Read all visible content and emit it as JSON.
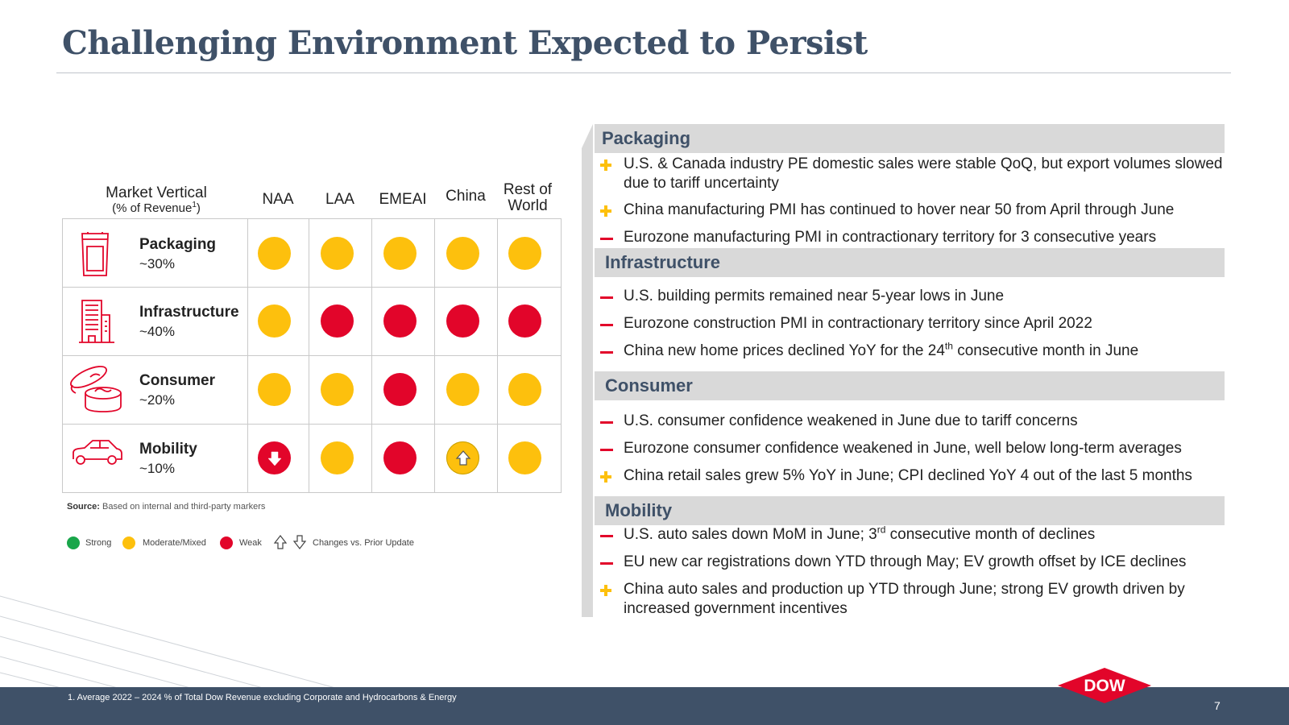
{
  "title": "Challenging Environment Expected to Persist",
  "table": {
    "header": {
      "market_vertical": "Market Vertical",
      "pct_label": "(% of Revenue",
      "pct_sup": "1",
      "pct_close": ")",
      "regions": [
        "NAA",
        "LAA",
        "EMEAI",
        "China",
        "Rest of World"
      ]
    },
    "rows": [
      {
        "name": "Packaging",
        "pct": "~30%",
        "cells": [
          "moderate",
          "moderate",
          "moderate",
          "moderate",
          "moderate"
        ],
        "changes": [
          null,
          null,
          null,
          null,
          null
        ]
      },
      {
        "name": "Infrastructure",
        "pct": "~40%",
        "cells": [
          "moderate",
          "weak",
          "weak",
          "weak",
          "weak"
        ],
        "changes": [
          null,
          null,
          null,
          null,
          null
        ]
      },
      {
        "name": "Consumer",
        "pct": "~20%",
        "cells": [
          "moderate",
          "moderate",
          "weak",
          "moderate",
          "moderate"
        ],
        "changes": [
          null,
          null,
          null,
          null,
          null
        ]
      },
      {
        "name": "Mobility",
        "pct": "~10%",
        "cells": [
          "weak",
          "moderate",
          "weak",
          "moderate",
          "moderate"
        ],
        "changes": [
          "down",
          null,
          null,
          "up",
          null
        ]
      }
    ]
  },
  "source": {
    "label": "Source:",
    "text": "Based on internal and third-party markers"
  },
  "legend": {
    "strong": "Strong",
    "moderate": "Moderate/Mixed",
    "weak": "Weak",
    "changes": "Changes vs. Prior Update"
  },
  "colors": {
    "strong": "#19a64a",
    "moderate": "#fdc00d",
    "weak": "#e2052a",
    "brand_navy": "#3f5168",
    "dow_red": "#e2052a"
  },
  "sections": [
    {
      "title": "Packaging",
      "bullets": [
        {
          "sign": "plus",
          "text": "U.S. & Canada industry PE domestic sales were stable QoQ, but export volumes slowed due to tariff uncertainty"
        },
        {
          "sign": "plus",
          "text": "China manufacturing PMI has continued to hover near 50 from April through June"
        },
        {
          "sign": "minus",
          "text": "Eurozone manufacturing PMI in contractionary territory for 3 consecutive years"
        }
      ]
    },
    {
      "title": "Infrastructure",
      "bullets": [
        {
          "sign": "minus",
          "text": "U.S. building permits remained near 5-year lows in June"
        },
        {
          "sign": "minus",
          "text": "Eurozone construction PMI in contractionary territory since April 2022"
        },
        {
          "sign": "minus",
          "pre": "China new home prices declined YoY for the 24",
          "sup": "th",
          "post": " consecutive month in June"
        }
      ]
    },
    {
      "title": "Consumer",
      "bullets": [
        {
          "sign": "minus",
          "text": "U.S. consumer confidence weakened in June due to tariff concerns"
        },
        {
          "sign": "minus",
          "text": "Eurozone consumer confidence weakened in June, well below long-term averages"
        },
        {
          "sign": "plus",
          "text": "China retail sales grew 5% YoY in June; CPI declined YoY 4 out of the last 5 months"
        }
      ]
    },
    {
      "title": "Mobility",
      "bullets": [
        {
          "sign": "minus",
          "pre": "U.S. auto sales down MoM in June; 3",
          "sup": "rd",
          "post": " consecutive month of declines"
        },
        {
          "sign": "minus",
          "text": "EU new car registrations down YTD through May; EV growth offset by ICE declines"
        },
        {
          "sign": "plus",
          "text": "China auto sales and production up YTD through June; strong EV growth driven by increased government incentives"
        }
      ]
    }
  ],
  "footnote": "1.  Average 2022 – 2024 % of Total Dow Revenue excluding Corporate and Hydrocarbons & Energy",
  "page_number": "7",
  "logo_text": "DOW"
}
